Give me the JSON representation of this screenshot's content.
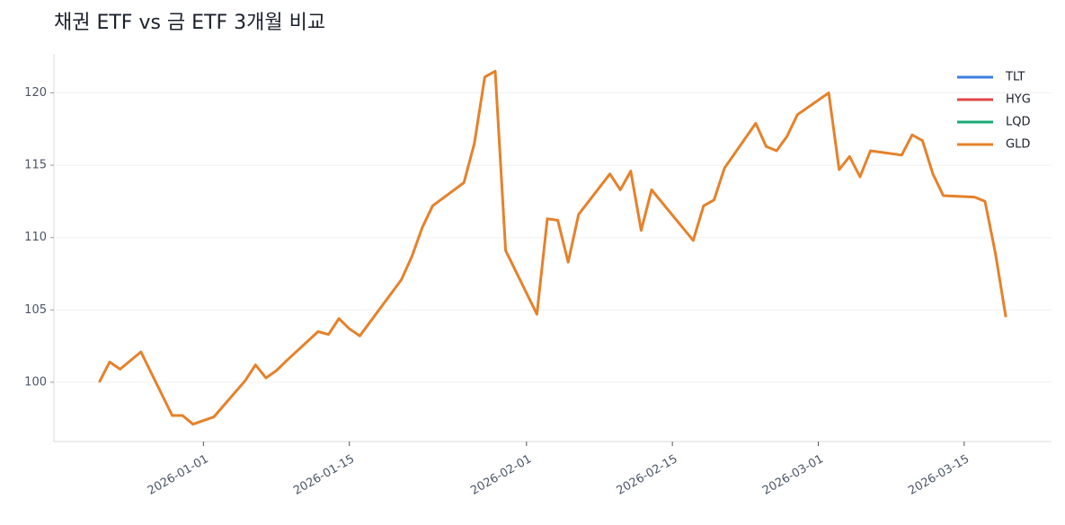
{
  "chart_data": {
    "type": "line",
    "title": "채권 ETF vs 금 ETF 3개월 비교",
    "x": [
      "2025-12-22",
      "2025-12-23",
      "2025-12-24",
      "2025-12-26",
      "2025-12-29",
      "2025-12-30",
      "2025-12-31",
      "2026-01-02",
      "2026-01-05",
      "2026-01-06",
      "2026-01-07",
      "2026-01-08",
      "2026-01-09",
      "2026-01-12",
      "2026-01-13",
      "2026-01-14",
      "2026-01-15",
      "2026-01-16",
      "2026-01-20",
      "2026-01-21",
      "2026-01-22",
      "2026-01-23",
      "2026-01-26",
      "2026-01-27",
      "2026-01-28",
      "2026-01-29",
      "2026-01-30",
      "2026-02-02",
      "2026-02-03",
      "2026-02-04",
      "2026-02-05",
      "2026-02-06",
      "2026-02-09",
      "2026-02-10",
      "2026-02-11",
      "2026-02-12",
      "2026-02-13",
      "2026-02-17",
      "2026-02-18",
      "2026-02-19",
      "2026-02-20",
      "2026-02-23",
      "2026-02-24",
      "2026-02-25",
      "2026-02-26",
      "2026-02-27",
      "2026-03-02",
      "2026-03-03",
      "2026-03-04",
      "2026-03-05",
      "2026-03-06",
      "2026-03-09",
      "2026-03-10",
      "2026-03-11",
      "2026-03-12",
      "2026-03-13",
      "2026-03-16",
      "2026-03-17",
      "2026-03-18",
      "2026-03-19"
    ],
    "series": [
      {
        "name": "TLT",
        "color": "#3a7fdd",
        "values": [
          null,
          null,
          null,
          null,
          null,
          null,
          null,
          null,
          null,
          null,
          null,
          null,
          null,
          null,
          null,
          null,
          null,
          null,
          null,
          null,
          null,
          null,
          null,
          null,
          null,
          null,
          null,
          null,
          null,
          null,
          null,
          null,
          null,
          null,
          null,
          null,
          null,
          null,
          null,
          null,
          null,
          null,
          null,
          null,
          null,
          null,
          null,
          null,
          null,
          null,
          null,
          null,
          null,
          null,
          null,
          null,
          null,
          null,
          null,
          null
        ]
      },
      {
        "name": "HYG",
        "color": "#e04848",
        "values": [
          null,
          null,
          null,
          null,
          null,
          null,
          null,
          null,
          null,
          null,
          null,
          null,
          null,
          null,
          null,
          null,
          null,
          null,
          null,
          null,
          null,
          null,
          null,
          null,
          null,
          null,
          null,
          null,
          null,
          null,
          null,
          null,
          null,
          null,
          null,
          null,
          null,
          null,
          null,
          null,
          null,
          null,
          null,
          null,
          null,
          null,
          null,
          null,
          null,
          null,
          null,
          null,
          null,
          null,
          null,
          null,
          null,
          null,
          null,
          null
        ]
      },
      {
        "name": "LQD",
        "color": "#1aa876",
        "values": [
          null,
          null,
          null,
          null,
          null,
          null,
          null,
          null,
          null,
          null,
          null,
          null,
          null,
          null,
          null,
          null,
          null,
          null,
          null,
          null,
          null,
          null,
          null,
          null,
          null,
          null,
          null,
          null,
          null,
          null,
          null,
          null,
          null,
          null,
          null,
          null,
          null,
          null,
          null,
          null,
          null,
          null,
          null,
          null,
          null,
          null,
          null,
          null,
          null,
          null,
          null,
          null,
          null,
          null,
          null,
          null,
          null,
          null,
          null,
          null
        ]
      },
      {
        "name": "GLD",
        "color": "#e6812a",
        "values": [
          100.0,
          101.4,
          100.9,
          102.1,
          97.7,
          97.7,
          97.1,
          97.6,
          100.1,
          101.2,
          100.3,
          100.8,
          101.5,
          103.5,
          103.3,
          104.4,
          103.7,
          103.2,
          107.1,
          108.7,
          110.7,
          112.2,
          113.8,
          116.5,
          121.1,
          121.5,
          109.1,
          104.7,
          111.3,
          111.2,
          108.3,
          111.6,
          114.4,
          113.3,
          114.6,
          110.5,
          113.3,
          109.8,
          112.2,
          112.6,
          114.8,
          117.9,
          116.3,
          116.0,
          117.0,
          118.5,
          120.0,
          114.7,
          115.6,
          114.2,
          116.0,
          115.7,
          117.1,
          116.7,
          114.4,
          112.9,
          112.8,
          112.5,
          108.9,
          104.5
        ]
      }
    ],
    "xlim": [
      "2025-12-18",
      "2026-03-22"
    ],
    "xticks": [
      "2026-01-01",
      "2026-01-15",
      "2026-02-01",
      "2026-02-15",
      "2026-03-01",
      "2026-03-15"
    ],
    "ylim": [
      95.9,
      122.7
    ],
    "yticks": [
      100,
      105,
      110,
      115,
      120
    ],
    "grid": true,
    "legend": "upper right"
  }
}
